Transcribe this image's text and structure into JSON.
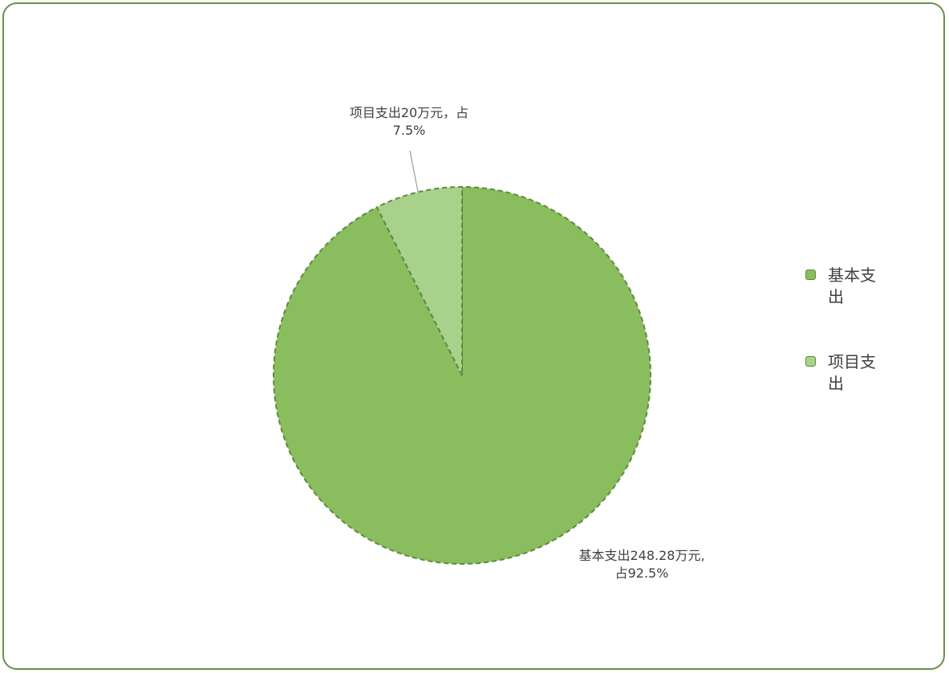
{
  "chart_data": {
    "type": "pie",
    "slices": [
      {
        "name": "基本支出",
        "value": 248.28,
        "percent": 92.5,
        "color": "#89bd5e",
        "label_line1": "基本支出248.28万元,",
        "label_line2": "占92.5%"
      },
      {
        "name": "项目支出",
        "value": 20,
        "percent": 7.5,
        "color": "#a8d28c",
        "label_line1": "项目支出20万元，占",
        "label_line2": "7.5%"
      }
    ],
    "legend": {
      "placement": "right",
      "items": [
        {
          "line1": "基本支",
          "line2": "出",
          "color": "#89bd5e"
        },
        {
          "line1": "项目支",
          "line2": "出",
          "color": "#a8d28c"
        }
      ]
    },
    "border_color": "#6b8f4a",
    "slice_border_style": "dashed"
  }
}
